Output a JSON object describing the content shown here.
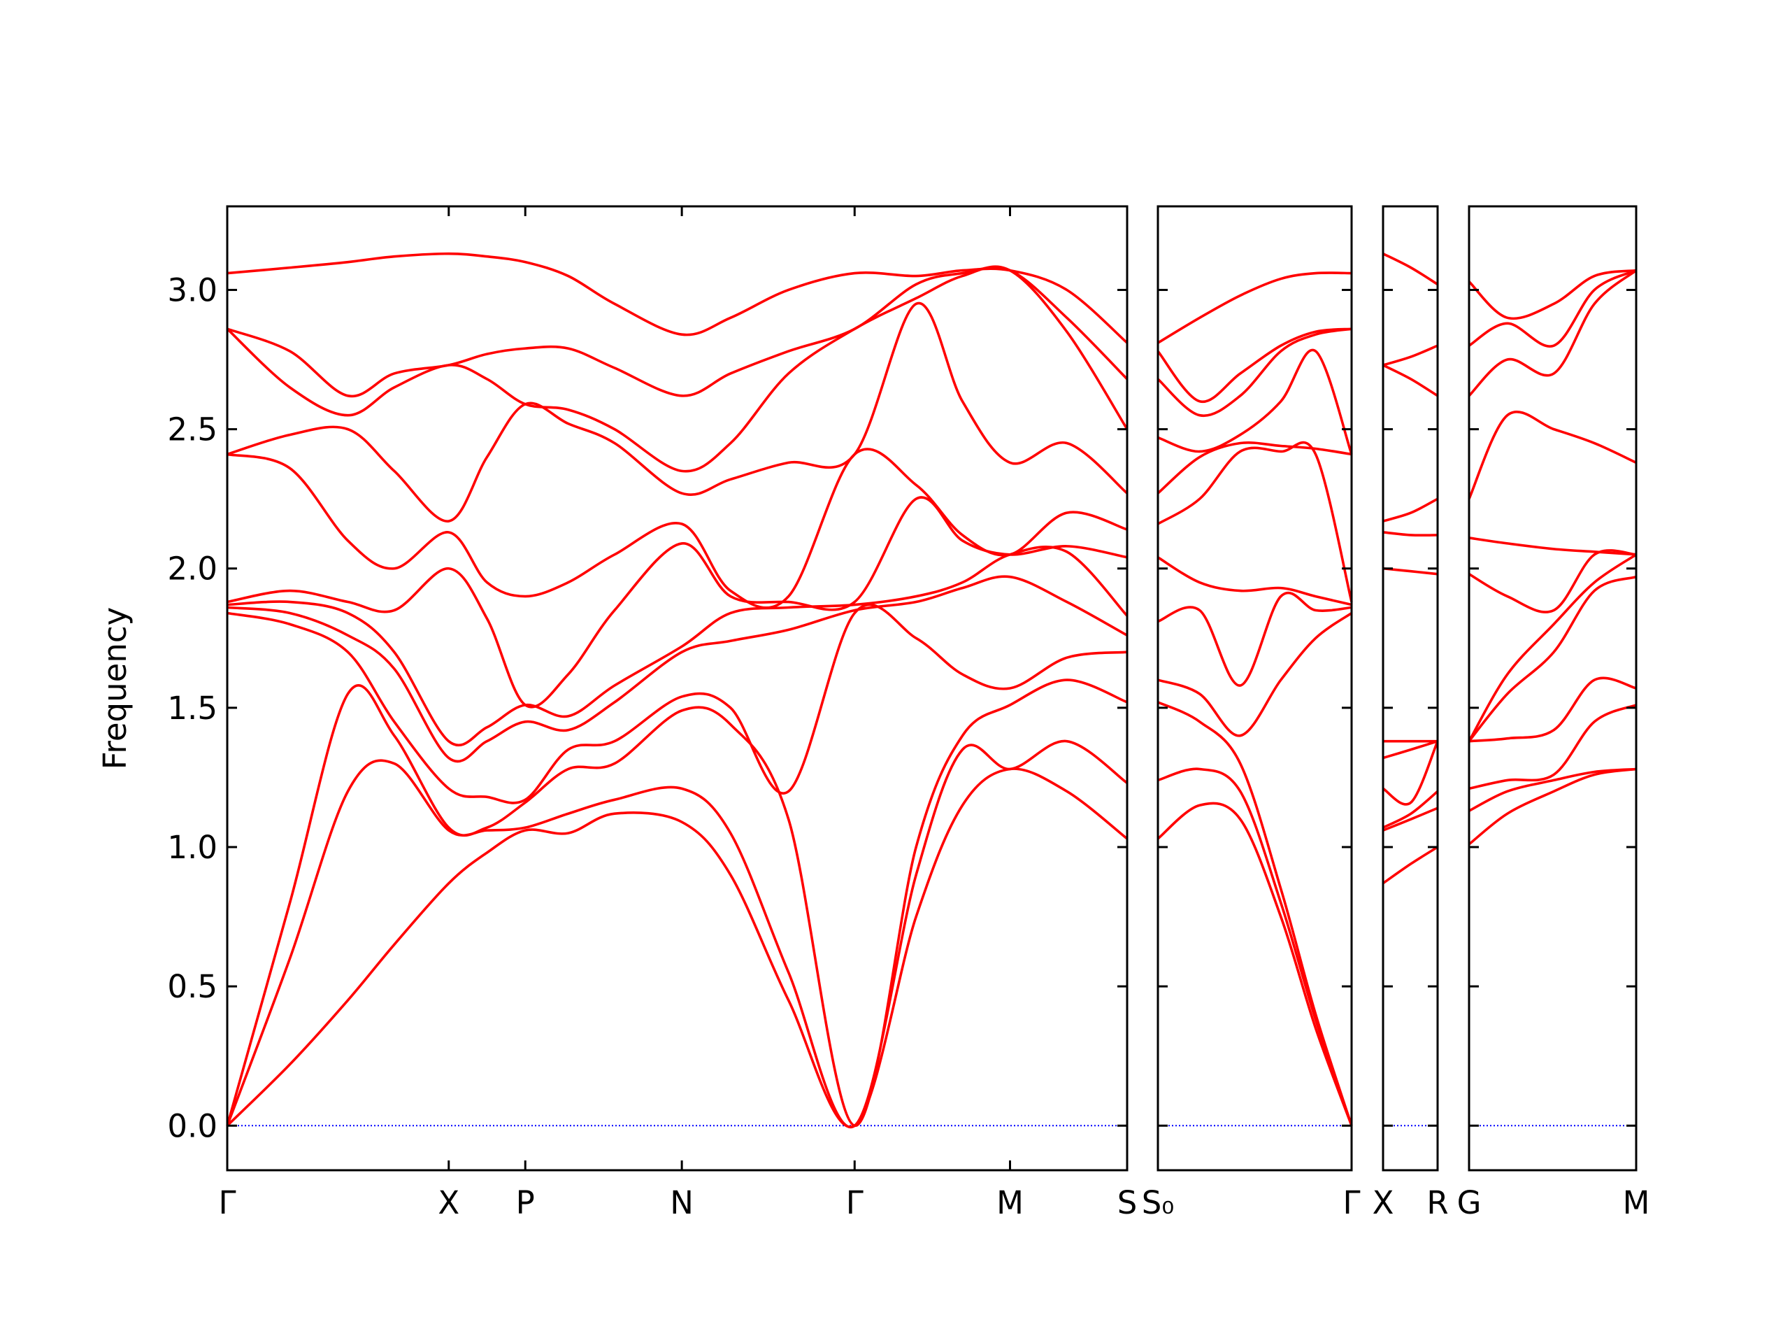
{
  "chart_data": [
    {
      "type": "line",
      "ylabel": "Frequency",
      "color": "#ff0000",
      "hline": 0,
      "hline_color": "#0000ff",
      "xlim": [
        0,
        7.76
      ],
      "ylim": [
        -0.16,
        3.3
      ],
      "xticks": [
        {
          "value": 0,
          "label": "Γ"
        },
        {
          "value": 1.91,
          "label": "X"
        },
        {
          "value": 2.57,
          "label": "P"
        },
        {
          "value": 3.92,
          "label": "N"
        },
        {
          "value": 5.41,
          "label": "Γ"
        },
        {
          "value": 6.75,
          "label": "M"
        },
        {
          "value": 7.76,
          "label": "S"
        }
      ],
      "yticks": [
        {
          "value": 0,
          "label": "0.0"
        },
        0.5,
        {
          "value": 1,
          "label": "1.0"
        },
        1.5,
        {
          "value": 2,
          "label": "2.0"
        },
        2.5,
        {
          "value": 3,
          "label": "3.0"
        }
      ],
      "x": [
        0,
        0.54,
        1.04,
        1.44,
        1.91,
        2.24,
        2.57,
        2.94,
        3.34,
        3.92,
        4.34,
        4.84,
        5.41,
        5.94,
        6.34,
        6.75,
        7.24,
        7.76
      ],
      "series": [
        {
          "values": [
            0,
            0.22,
            0.45,
            0.65,
            0.87,
            0.98,
            1.06,
            1.05,
            1.12,
            1.09,
            0.9,
            0.45,
            0,
            0.75,
            1.15,
            1.28,
            1.2,
            1.03
          ]
        },
        {
          "values": [
            0,
            0.6,
            1.2,
            1.3,
            1.06,
            1.06,
            1.07,
            1.12,
            1.17,
            1.21,
            1.05,
            0.55,
            0,
            0.9,
            1.35,
            1.28,
            1.38,
            1.23
          ]
        },
        {
          "values": [
            0,
            0.8,
            1.55,
            1.4,
            1.07,
            1.07,
            1.16,
            1.28,
            1.3,
            1.49,
            1.44,
            1.1,
            0,
            1.0,
            1.4,
            1.51,
            1.6,
            1.52
          ]
        },
        {
          "values": [
            1.84,
            1.8,
            1.7,
            1.45,
            1.21,
            1.18,
            1.17,
            1.35,
            1.38,
            1.54,
            1.5,
            1.2,
            1.84,
            1.75,
            1.62,
            1.57,
            1.68,
            1.7
          ]
        },
        {
          "values": [
            1.86,
            1.84,
            1.76,
            1.64,
            1.32,
            1.38,
            1.45,
            1.42,
            1.52,
            1.7,
            1.74,
            1.78,
            1.85,
            1.88,
            1.93,
            1.97,
            1.88,
            1.76
          ]
        },
        {
          "values": [
            1.87,
            1.88,
            1.84,
            1.7,
            1.38,
            1.43,
            1.51,
            1.47,
            1.58,
            1.72,
            1.84,
            1.86,
            1.87,
            1.9,
            1.95,
            2.05,
            2.06,
            1.83
          ]
        },
        {
          "values": [
            1.88,
            1.92,
            1.88,
            1.85,
            2.0,
            1.82,
            1.51,
            1.62,
            1.85,
            2.09,
            1.9,
            1.88,
            1.88,
            2.25,
            2.1,
            2.05,
            2.08,
            2.04
          ]
        },
        {
          "values": [
            2.41,
            2.36,
            2.1,
            2.0,
            2.13,
            1.95,
            1.9,
            1.95,
            2.05,
            2.16,
            1.92,
            1.9,
            2.41,
            2.3,
            2.12,
            2.05,
            2.2,
            2.14
          ]
        },
        {
          "values": [
            2.41,
            2.48,
            2.5,
            2.35,
            2.17,
            2.4,
            2.59,
            2.52,
            2.45,
            2.27,
            2.32,
            2.38,
            2.41,
            2.95,
            2.6,
            2.38,
            2.45,
            2.27
          ]
        },
        {
          "values": [
            2.86,
            2.65,
            2.55,
            2.65,
            2.73,
            2.68,
            2.59,
            2.57,
            2.5,
            2.35,
            2.45,
            2.7,
            2.86,
            2.97,
            3.05,
            3.07,
            2.85,
            2.5
          ]
        },
        {
          "values": [
            2.86,
            2.78,
            2.62,
            2.7,
            2.73,
            2.77,
            2.79,
            2.79,
            2.72,
            2.62,
            2.7,
            2.78,
            2.86,
            3.02,
            3.06,
            3.07,
            2.9,
            2.68
          ]
        },
        {
          "values": [
            3.06,
            3.08,
            3.1,
            3.12,
            3.13,
            3.12,
            3.1,
            3.05,
            2.95,
            2.84,
            2.9,
            3.0,
            3.06,
            3.05,
            3.07,
            3.07,
            3.0,
            2.81
          ]
        }
      ]
    },
    {
      "type": "line",
      "color": "#ff0000",
      "hline": 0,
      "hline_color": "#0000ff",
      "xlim": [
        0,
        1.67
      ],
      "ylim": [
        -0.16,
        3.3
      ],
      "xticks": [
        {
          "value": 0,
          "label": "S₀"
        },
        {
          "value": 1.67,
          "label": "Γ"
        }
      ],
      "yticks": [
        0,
        0.5,
        1,
        1.5,
        2,
        2.5,
        3
      ],
      "x": [
        0,
        0.36,
        0.71,
        1.06,
        1.36,
        1.67
      ],
      "series": [
        {
          "values": [
            1.03,
            1.15,
            1.1,
            0.75,
            0.35,
            0
          ]
        },
        {
          "values": [
            1.24,
            1.28,
            1.2,
            0.8,
            0.38,
            0
          ]
        },
        {
          "values": [
            1.52,
            1.45,
            1.3,
            0.85,
            0.4,
            0
          ]
        },
        {
          "values": [
            1.6,
            1.55,
            1.4,
            1.6,
            1.75,
            1.84
          ]
        },
        {
          "values": [
            1.81,
            1.85,
            1.58,
            1.9,
            1.85,
            1.86
          ]
        },
        {
          "values": [
            2.04,
            1.95,
            1.92,
            1.93,
            1.9,
            1.87
          ]
        },
        {
          "values": [
            2.16,
            2.25,
            2.42,
            2.42,
            2.41,
            1.88
          ]
        },
        {
          "values": [
            2.27,
            2.4,
            2.45,
            2.44,
            2.43,
            2.41
          ]
        },
        {
          "values": [
            2.47,
            2.42,
            2.48,
            2.6,
            2.78,
            2.41
          ]
        },
        {
          "values": [
            2.68,
            2.55,
            2.62,
            2.78,
            2.84,
            2.86
          ]
        },
        {
          "values": [
            2.78,
            2.6,
            2.7,
            2.8,
            2.85,
            2.86
          ]
        },
        {
          "values": [
            2.81,
            2.9,
            2.98,
            3.04,
            3.06,
            3.06
          ]
        }
      ]
    },
    {
      "type": "line",
      "color": "#ff0000",
      "hline": 0,
      "hline_color": "#0000ff",
      "xlim": [
        0,
        0.47
      ],
      "ylim": [
        -0.16,
        3.3
      ],
      "xticks": [
        {
          "value": 0,
          "label": "X"
        },
        {
          "value": 0.47,
          "label": "R"
        }
      ],
      "yticks": [
        0,
        0.5,
        1,
        1.5,
        2,
        2.5,
        3
      ],
      "x": [
        0,
        0.24,
        0.47
      ],
      "series": [
        {
          "values": [
            0.87,
            0.94,
            1.0
          ]
        },
        {
          "values": [
            1.06,
            1.1,
            1.14
          ]
        },
        {
          "values": [
            1.07,
            1.12,
            1.2
          ]
        },
        {
          "values": [
            1.21,
            1.16,
            1.38
          ]
        },
        {
          "values": [
            1.32,
            1.35,
            1.38
          ]
        },
        {
          "values": [
            1.38,
            1.38,
            1.38
          ]
        },
        {
          "values": [
            2.0,
            1.99,
            1.98
          ]
        },
        {
          "values": [
            2.13,
            2.12,
            2.12
          ]
        },
        {
          "values": [
            2.17,
            2.2,
            2.25
          ]
        },
        {
          "values": [
            2.73,
            2.68,
            2.62
          ]
        },
        {
          "values": [
            2.73,
            2.76,
            2.8
          ]
        },
        {
          "values": [
            3.13,
            3.08,
            3.02
          ]
        }
      ]
    },
    {
      "type": "line",
      "color": "#ff0000",
      "hline": 0,
      "hline_color": "#0000ff",
      "xlim": [
        0,
        1.44
      ],
      "ylim": [
        -0.16,
        3.3
      ],
      "xticks": [
        {
          "value": 0,
          "label": "G"
        },
        {
          "value": 1.44,
          "label": "M"
        }
      ],
      "yticks": [
        0,
        0.5,
        1,
        1.5,
        2,
        2.5,
        3
      ],
      "x": [
        0,
        0.33,
        0.73,
        1.08,
        1.44
      ],
      "series": [
        {
          "values": [
            1.01,
            1.12,
            1.2,
            1.26,
            1.28
          ]
        },
        {
          "values": [
            1.13,
            1.2,
            1.24,
            1.27,
            1.28
          ]
        },
        {
          "values": [
            1.21,
            1.24,
            1.26,
            1.45,
            1.51
          ]
        },
        {
          "values": [
            1.38,
            1.39,
            1.42,
            1.6,
            1.57
          ]
        },
        {
          "values": [
            1.38,
            1.55,
            1.7,
            1.92,
            1.97
          ]
        },
        {
          "values": [
            1.38,
            1.62,
            1.8,
            1.95,
            2.05
          ]
        },
        {
          "values": [
            1.98,
            1.9,
            1.85,
            2.05,
            2.05
          ]
        },
        {
          "values": [
            2.11,
            2.09,
            2.07,
            2.06,
            2.05
          ]
        },
        {
          "values": [
            2.25,
            2.55,
            2.5,
            2.45,
            2.38
          ]
        },
        {
          "values": [
            2.62,
            2.75,
            2.7,
            2.95,
            3.07
          ]
        },
        {
          "values": [
            2.8,
            2.88,
            2.8,
            3.0,
            3.07
          ]
        },
        {
          "values": [
            3.03,
            2.9,
            2.95,
            3.05,
            3.07
          ]
        }
      ]
    }
  ]
}
